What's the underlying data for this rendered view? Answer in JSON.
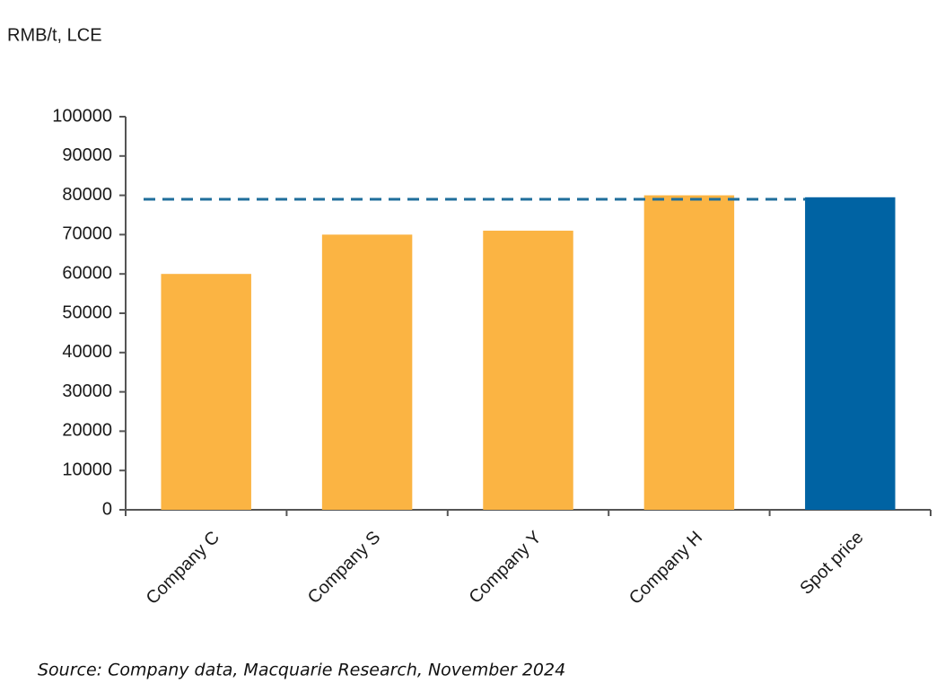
{
  "chart_data": {
    "type": "bar",
    "y_axis_label": "RMB/t, LCE",
    "categories": [
      "Company C",
      "Company S",
      "Company Y",
      "Company H",
      "Spot price"
    ],
    "values": [
      60000,
      70000,
      71000,
      80000,
      79500
    ],
    "colors": [
      "#fbb443",
      "#fbb443",
      "#fbb443",
      "#fbb443",
      "#0063a3"
    ],
    "reference_line": {
      "value": 79000,
      "color": "#1f6e9b",
      "style": "dashed"
    },
    "ylim": [
      0,
      100000
    ],
    "yticks": [
      0,
      10000,
      20000,
      30000,
      40000,
      50000,
      60000,
      70000,
      80000,
      90000,
      100000
    ],
    "grid": false,
    "source": "Source: Company data, Macquarie Research, November 2024"
  }
}
